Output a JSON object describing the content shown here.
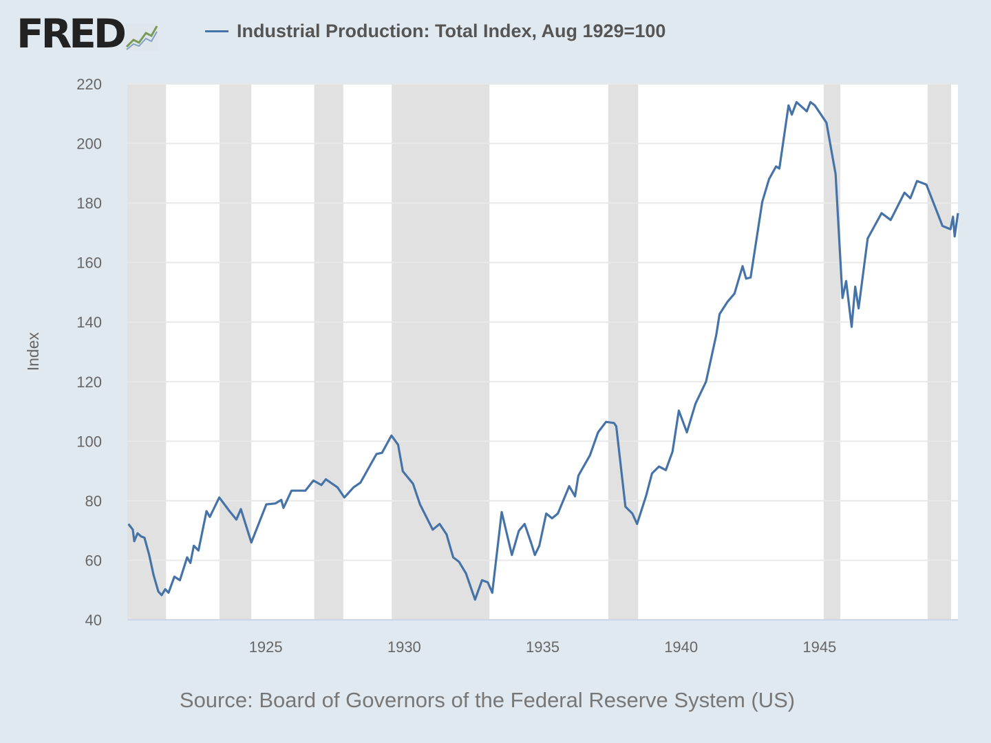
{
  "logo": {
    "text": "FRED"
  },
  "chart_data": {
    "type": "line",
    "title": "",
    "xlabel": "",
    "ylabel": "Index",
    "xlim": [
      1920,
      1950
    ],
    "ylim": [
      40,
      220
    ],
    "yticks": [
      40,
      60,
      80,
      100,
      120,
      140,
      160,
      180,
      200,
      220
    ],
    "xticks": [
      1925,
      1930,
      1935,
      1940,
      1945
    ],
    "grid": "horizontal",
    "legend_position": "top",
    "line_color": "#4572a7",
    "recession_color": "#e1e1e1",
    "recessions": [
      [
        1920.0,
        1921.4
      ],
      [
        1923.33,
        1924.48
      ],
      [
        1926.75,
        1927.8
      ],
      [
        1929.55,
        1933.08
      ],
      [
        1937.37,
        1938.45
      ],
      [
        1945.15,
        1945.75
      ],
      [
        1948.9,
        1949.75
      ]
    ],
    "series": [
      {
        "name": "Industrial Production: Total Index, Aug 1929=100",
        "x": [
          1920.04,
          1920.2,
          1920.25,
          1920.37,
          1920.5,
          1920.62,
          1920.79,
          1920.95,
          1921.12,
          1921.24,
          1921.37,
          1921.49,
          1921.7,
          1921.9,
          1922.16,
          1922.28,
          1922.4,
          1922.57,
          1922.86,
          1922.98,
          1923.32,
          1923.69,
          1923.94,
          1924.1,
          1924.48,
          1925.02,
          1925.35,
          1925.56,
          1925.64,
          1925.93,
          1926.43,
          1926.72,
          1927.01,
          1927.17,
          1927.59,
          1927.84,
          1928.17,
          1928.42,
          1929.0,
          1929.2,
          1929.54,
          1929.78,
          1929.95,
          1930.32,
          1930.57,
          1931.03,
          1931.28,
          1931.53,
          1931.77,
          1931.98,
          1932.23,
          1932.56,
          1932.81,
          1933.02,
          1933.18,
          1933.52,
          1933.89,
          1934.14,
          1934.35,
          1934.59,
          1934.72,
          1934.88,
          1935.13,
          1935.34,
          1935.55,
          1935.96,
          1936.17,
          1936.29,
          1936.71,
          1937.0,
          1937.29,
          1937.58,
          1937.66,
          1937.99,
          1938.24,
          1938.41,
          1938.74,
          1938.95,
          1939.2,
          1939.45,
          1939.69,
          1939.92,
          1940.21,
          1940.52,
          1940.9,
          1941.27,
          1941.39,
          1941.68,
          1941.93,
          1942.22,
          1942.35,
          1942.51,
          1942.93,
          1943.18,
          1943.43,
          1943.55,
          1943.88,
          1944.0,
          1944.17,
          1944.54,
          1944.67,
          1944.83,
          1945.25,
          1945.58,
          1945.83,
          1945.96,
          1946.16,
          1946.29,
          1946.41,
          1946.74,
          1947.24,
          1947.57,
          1948.07,
          1948.28,
          1948.52,
          1948.86,
          1949.44,
          1949.73,
          1949.82,
          1949.88,
          1950.0
        ],
        "values": [
          72.2,
          70.3,
          66.4,
          69.1,
          68,
          67.6,
          61.8,
          55,
          49.5,
          48.3,
          50.3,
          49.1,
          54.5,
          53.3,
          61,
          59.1,
          64.9,
          63.3,
          76.5,
          74.6,
          81.1,
          76.5,
          73.7,
          77.2,
          66,
          78.8,
          79.1,
          80.3,
          77.6,
          83.4,
          83.4,
          86.8,
          85.3,
          87.2,
          84.5,
          81.1,
          84.5,
          86.1,
          95.7,
          96.1,
          101.9,
          98.8,
          89.9,
          85.7,
          78.8,
          70.3,
          72.2,
          68.7,
          61,
          59.5,
          55.6,
          46.8,
          53.3,
          52.6,
          49.1,
          76.2,
          61.8,
          69.9,
          72.2,
          65.7,
          61.8,
          64.9,
          75.7,
          74.1,
          75.7,
          84.9,
          81.5,
          88.4,
          95.3,
          103,
          106.5,
          106.1,
          105,
          78,
          75.7,
          72.2,
          81.8,
          89.2,
          91.5,
          90.3,
          96.5,
          110.3,
          103,
          112.6,
          120,
          135.7,
          142.7,
          146.9,
          149.6,
          158.8,
          154.6,
          155,
          180.4,
          188.1,
          192.3,
          191.6,
          212.8,
          209.7,
          213.9,
          210.8,
          213.9,
          212.8,
          207,
          189.7,
          148.1,
          153.8,
          138.4,
          151.9,
          144.6,
          168.1,
          176.6,
          174.3,
          183.5,
          181.6,
          187.4,
          186.2,
          172.3,
          171.2,
          175.4,
          168.8,
          176.6
        ]
      }
    ]
  },
  "source": "Source: Board of Governors of the Federal Reserve System (US)"
}
